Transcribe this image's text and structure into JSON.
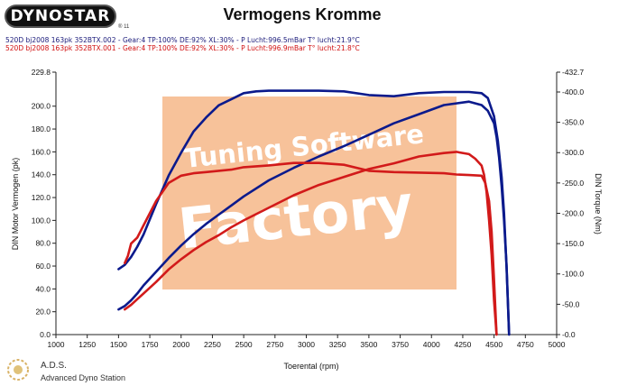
{
  "brand": {
    "logo_text": "DYNOSTAR",
    "registered": "® 11"
  },
  "runs": [
    {
      "text": "520D bj2008 163pk 352BTX.002 - Gear:4 TP:100% DE:92% XL:30%   - P Lucht:996.5mBar T° lucht:21.9°C",
      "color": "#1a1a7a"
    },
    {
      "text": "520D bj2008 163pk 352BTX.001 - Gear:4 TP:100% DE:92% XL:30%   - P Lucht:996.9mBar T° lucht:21.8°C",
      "color": "#d01010"
    }
  ],
  "watermark": {
    "line1": "Tuning Software",
    "line2": "Factory"
  },
  "footer": {
    "abbr": "A.D.S.",
    "name": "Advanced Dyno Station"
  },
  "colors": {
    "run_002": "#0b1a8c",
    "run_001": "#d21a1a",
    "watermark_fill": "#f7c29a",
    "watermark_text": "#ffffff"
  },
  "chart_data": {
    "type": "line",
    "title": "Vermogens Kromme",
    "xlabel": "Toerental (rpm)",
    "ylabel": "DIN Motor Vermogen (pk)",
    "y2label": "DIN Torque (Nm)",
    "xlim": [
      1000,
      5000
    ],
    "ylim": [
      0,
      229.8
    ],
    "y2lim": [
      0,
      -432.7
    ],
    "xticks": [
      1000,
      1250,
      1500,
      1750,
      2000,
      2250,
      2500,
      2750,
      3000,
      3250,
      3500,
      3750,
      4000,
      4250,
      4500,
      4750,
      5000
    ],
    "xtick_labels": [
      "1000",
      "1250",
      "1500",
      "1750",
      "2000",
      "2250",
      "2500",
      "2750",
      "3000",
      "3250",
      "3500",
      "3750",
      "4000",
      "4250",
      "4500",
      "4750",
      "5000"
    ],
    "yticks": [
      0,
      20,
      40,
      60,
      80,
      100,
      120,
      140,
      160,
      180,
      200,
      229.8
    ],
    "ytick_labels": [
      "0.0",
      "20.0",
      "40.0",
      "60.0",
      "80.0",
      "100.0",
      "120.0",
      "140.0",
      "160.0",
      "180.0",
      "200.0",
      "229.8"
    ],
    "y2ticks": [
      0,
      -50,
      -100,
      -150,
      -200,
      -250,
      -300,
      -350,
      -400,
      -432.7
    ],
    "y2tick_labels": [
      "-0.0",
      "-50.0",
      "-100.0",
      "-150.0",
      "-200.0",
      "-250.0",
      "-300.0",
      "-350.0",
      "-400.0",
      "-432.7"
    ],
    "grid": false,
    "series": [
      {
        "name": "Power",
        "run": "352BTX.002",
        "color": "#0b1a8c",
        "axis": "left",
        "x": [
          1500,
          1550,
          1600,
          1650,
          1700,
          1800,
          1900,
          2000,
          2100,
          2200,
          2300,
          2400,
          2500,
          2700,
          2900,
          3100,
          3300,
          3500,
          3700,
          3900,
          4100,
          4300,
          4400,
          4450,
          4500,
          4520,
          4540,
          4560,
          4580,
          4600,
          4620
        ],
        "y": [
          22,
          25,
          30,
          36,
          43,
          55,
          67,
          78,
          88,
          97,
          105,
          113,
          121,
          135,
          146,
          156,
          165,
          175,
          185,
          193,
          201,
          204,
          201,
          196,
          185,
          173,
          155,
          130,
          100,
          60,
          0
        ]
      },
      {
        "name": "Torque",
        "run": "352BTX.002",
        "color": "#0b1a8c",
        "axis": "right",
        "x": [
          1500,
          1550,
          1600,
          1650,
          1700,
          1800,
          1900,
          2000,
          2100,
          2200,
          2300,
          2400,
          2500,
          2600,
          2700,
          2900,
          3100,
          3300,
          3500,
          3700,
          3900,
          4100,
          4200,
          4300,
          4400,
          4450,
          4500,
          4530,
          4560,
          4580,
          4600,
          4620
        ],
        "y": [
          -108,
          -115,
          -128,
          -145,
          -165,
          -215,
          -262,
          -300,
          -335,
          -358,
          -378,
          -388,
          -398,
          -401,
          -402,
          -402,
          -402,
          -401,
          -395,
          -393,
          -398,
          -400,
          -400,
          -400,
          -398,
          -390,
          -360,
          -320,
          -260,
          -200,
          -110,
          0
        ]
      },
      {
        "name": "Power",
        "run": "352BTX.001",
        "color": "#d21a1a",
        "axis": "left",
        "x": [
          1550,
          1600,
          1650,
          1700,
          1800,
          1900,
          2000,
          2100,
          2200,
          2300,
          2400,
          2500,
          2700,
          2900,
          3100,
          3300,
          3500,
          3700,
          3900,
          4100,
          4200,
          4300,
          4350,
          4400,
          4420,
          4440,
          4460,
          4480,
          4500,
          4520
        ],
        "y": [
          22,
          26,
          31,
          36,
          46,
          57,
          66,
          74,
          81,
          87,
          94,
          100,
          111,
          122,
          131,
          138,
          145,
          150,
          156,
          159,
          160,
          158,
          154,
          148,
          140,
          125,
          100,
          70,
          30,
          0
        ]
      },
      {
        "name": "Torque",
        "run": "352BTX.001",
        "color": "#d21a1a",
        "axis": "right",
        "x": [
          1550,
          1575,
          1600,
          1650,
          1700,
          1800,
          1900,
          2000,
          2100,
          2200,
          2300,
          2400,
          2500,
          2700,
          2900,
          3100,
          3300,
          3500,
          3700,
          3900,
          4100,
          4200,
          4300,
          4400,
          4430,
          4460,
          4480,
          4500,
          4520
        ],
        "y": [
          -118,
          -130,
          -150,
          -160,
          -180,
          -220,
          -250,
          -262,
          -266,
          -268,
          -270,
          -272,
          -276,
          -279,
          -283,
          -283,
          -280,
          -270,
          -268,
          -267,
          -266,
          -264,
          -263,
          -262,
          -250,
          -220,
          -170,
          -90,
          0
        ]
      }
    ]
  }
}
